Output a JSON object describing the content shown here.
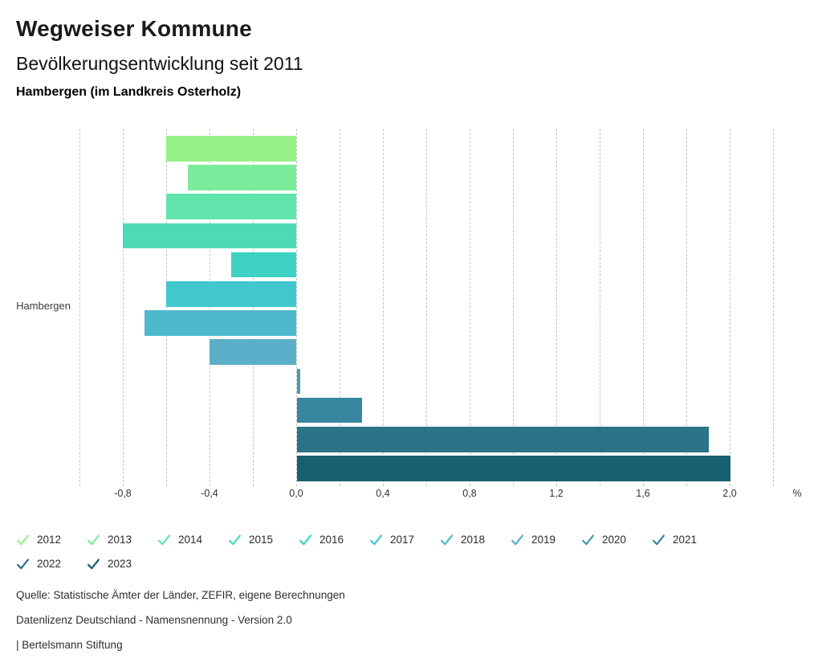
{
  "header": {
    "title": "Wegweiser Kommune",
    "subtitle": "Bevölkerungsentwicklung seit 2011",
    "region": "Hambergen (im Landkreis Osterholz)"
  },
  "chart_data": {
    "type": "bar",
    "orientation": "horizontal",
    "title": "Bevölkerungsentwicklung seit 2011",
    "category_label": "Hambergen",
    "unit": "%",
    "xlim": [
      -1.0,
      2.2
    ],
    "grid_step": 0.2,
    "grid_on": true,
    "legend_position": "bottom",
    "series": [
      {
        "year": "2012",
        "value": -0.6,
        "color": "#96f287"
      },
      {
        "year": "2013",
        "value": -0.5,
        "color": "#7cec9c"
      },
      {
        "year": "2014",
        "value": -0.6,
        "color": "#61e4ab"
      },
      {
        "year": "2015",
        "value": -0.8,
        "color": "#4cdbb6"
      },
      {
        "year": "2016",
        "value": -0.3,
        "color": "#3ed2c2"
      },
      {
        "year": "2017",
        "value": -0.6,
        "color": "#41c8ce"
      },
      {
        "year": "2018",
        "value": -0.7,
        "color": "#4fb9cc"
      },
      {
        "year": "2019",
        "value": -0.4,
        "color": "#5baec7"
      },
      {
        "year": "2020",
        "value": 0.0,
        "color": "#4a9cb5"
      },
      {
        "year": "2021",
        "value": 0.3,
        "color": "#36879f"
      },
      {
        "year": "2022",
        "value": 1.9,
        "color": "#2b7386"
      },
      {
        "year": "2023",
        "value": 2.0,
        "color": "#17606f"
      }
    ],
    "xticks": [
      {
        "v": -0.8,
        "label": "-0,8"
      },
      {
        "v": -0.4,
        "label": "-0,4"
      },
      {
        "v": 0.0,
        "label": "0,0"
      },
      {
        "v": 0.4,
        "label": "0,4"
      },
      {
        "v": 0.8,
        "label": "0,8"
      },
      {
        "v": 1.2,
        "label": "1,2"
      },
      {
        "v": 1.6,
        "label": "1,6"
      },
      {
        "v": 2.0,
        "label": "2,0"
      }
    ]
  },
  "footer": {
    "source": "Quelle: Statistische Ämter der Länder, ZEFIR, eigene Berechnungen",
    "license": "Datenlizenz Deutschland - Namensnennung - Version 2.0",
    "brand": "| Bertelsmann Stiftung"
  },
  "colors": {
    "grid": "#c3c3c3",
    "axis_text": "#333333",
    "background": "#ffffff"
  }
}
